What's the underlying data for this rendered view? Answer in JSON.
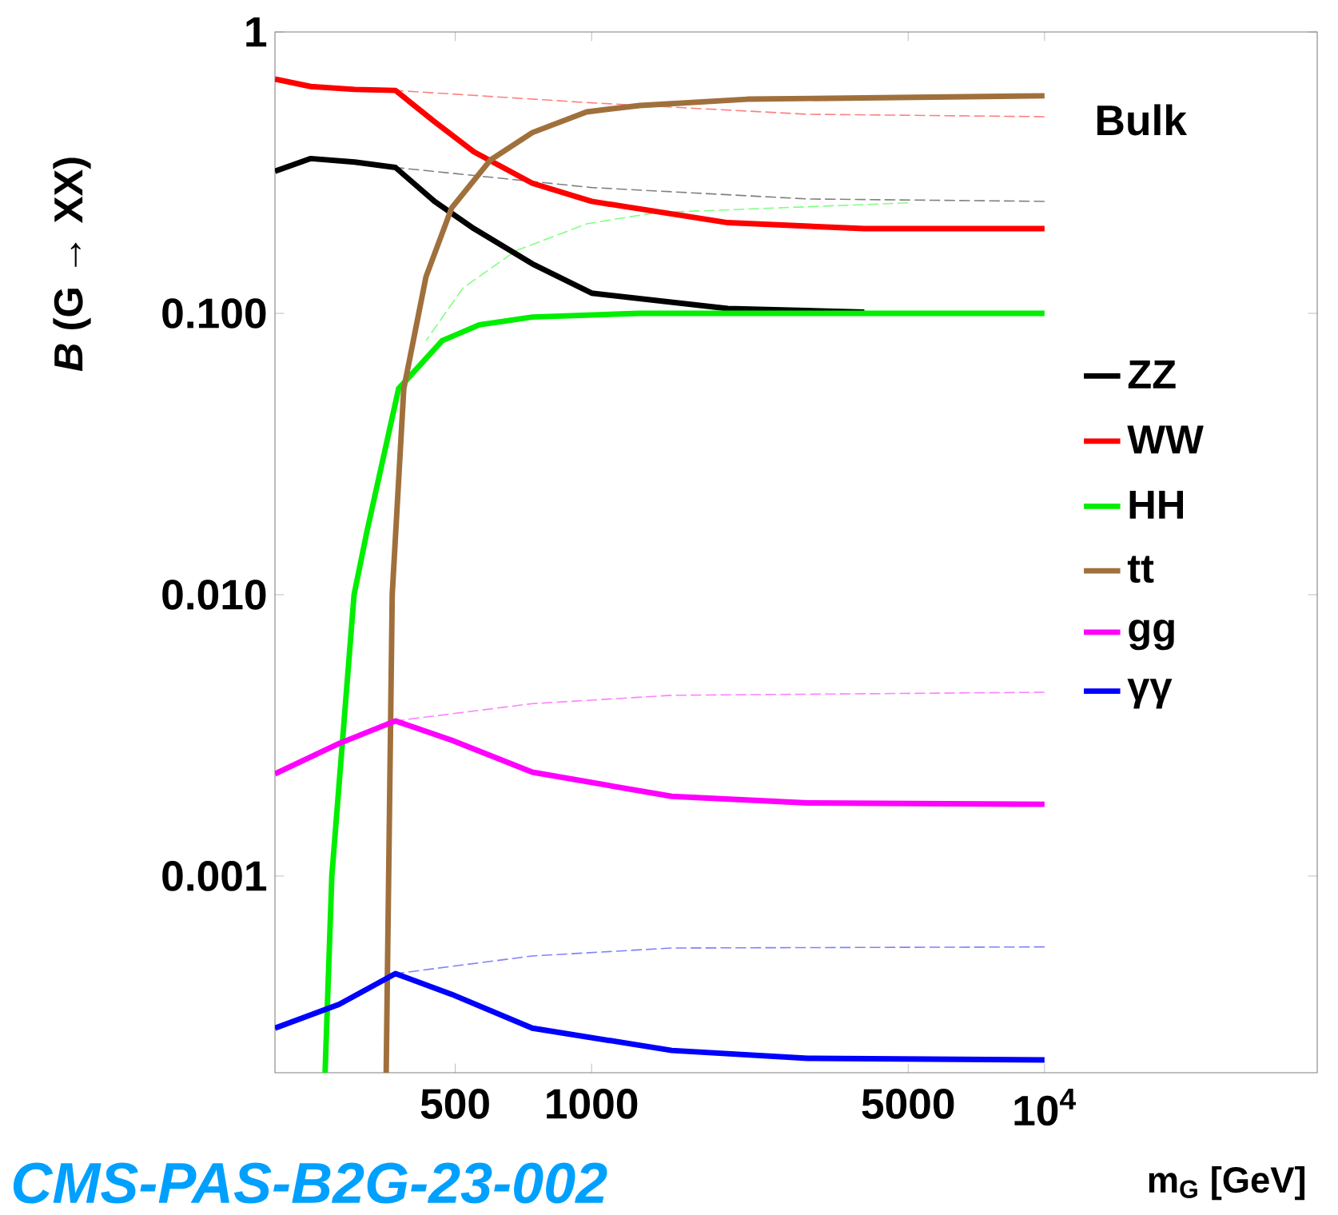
{
  "chart_data": {
    "type": "line",
    "log": "xy",
    "legend": "right",
    "marker": "none",
    "ylabel": "*B* (G → XX)",
    "xlabel": "m$_{G}$ [GeV]",
    "annotations": [
      "Bulk",
      "CMS-PAS-B2G-23-002"
    ],
    "xlim": [
      200,
      40000
    ],
    "ylim": [
      0.0002,
      1
    ],
    "xticks": [
      500,
      1000,
      5000,
      {
        "value": 10000,
        "label": "10$^{4}$"
      }
    ],
    "yticks": [
      1,
      {
        "value": 0.1,
        "label": "0.100"
      },
      {
        "value": 0.01,
        "label": "0.010"
      },
      {
        "value": 0.001,
        "label": "0.001"
      }
    ],
    "series": [
      {
        "color": "#ff8080",
        "line_style": "dashed",
        "x": [
          369,
          1000,
          3000,
          10000
        ],
        "values": [
          0.62,
          0.56,
          0.51,
          0.5
        ]
      },
      {
        "color": "#80ff80",
        "line_style": "dashed",
        "x": [
          431,
          520,
          681,
          975,
          1386,
          5000
        ],
        "values": [
          0.08,
          0.123,
          0.167,
          0.208,
          0.228,
          0.247
        ]
      },
      {
        "color": "#808080",
        "line_style": "dashed",
        "x": [
          369,
          1000,
          3000,
          10000
        ],
        "values": [
          0.33,
          0.28,
          0.255,
          0.25
        ]
      },
      {
        "color": "#ff80ff",
        "line_style": "dashed",
        "x": [
          369,
          740,
          1503,
          10000
        ],
        "values": [
          0.00356,
          0.0041,
          0.00439,
          0.0045
        ]
      },
      {
        "color": "#8080ff",
        "line_style": "dashed",
        "x": [
          369,
          740,
          1503,
          10000
        ],
        "values": [
          0.00045,
          0.00052,
          0.000555,
          0.00056
        ]
      },
      {
        "name": "ZZ",
        "color": "#000000",
        "line_style": "solid",
        "x": [
          200,
          240,
          300,
          369,
          450,
          550,
          740,
          1000,
          2000,
          4000
        ],
        "values": [
          0.32,
          0.355,
          0.345,
          0.33,
          0.25,
          0.2,
          0.15,
          0.118,
          0.104,
          0.101
        ]
      },
      {
        "name": "WW",
        "color": "#ff0000",
        "line_style": "solid",
        "x": [
          200,
          240,
          300,
          369,
          450,
          550,
          740,
          1000,
          2000,
          4000,
          10000
        ],
        "values": [
          0.68,
          0.64,
          0.625,
          0.62,
          0.48,
          0.375,
          0.29,
          0.25,
          0.21,
          0.2,
          0.2
        ]
      },
      {
        "name": "HH",
        "color": "#00ee00",
        "line_style": "solid",
        "x": [
          258,
          267,
          299,
          319,
          375,
          468,
          565,
          740,
          1277,
          10000
        ],
        "values": [
          0.0002,
          0.001,
          0.01,
          0.0167,
          0.054,
          0.08,
          0.091,
          0.097,
          0.1,
          0.1
        ]
      },
      {
        "name": "tt",
        "color": "#a0703c",
        "line_style": "solid",
        "x": [
          352,
          363,
          385,
          431,
          491,
          598,
          740,
          975,
          1277,
          2207,
          10000
        ],
        "values": [
          0.0002,
          0.01,
          0.054,
          0.135,
          0.237,
          0.351,
          0.439,
          0.52,
          0.548,
          0.577,
          0.593
        ]
      },
      {
        "name": "gg",
        "color": "#ff00ff",
        "line_style": "solid",
        "x": [
          200,
          277,
          369,
          491,
          740,
          1503,
          3000,
          10000
        ],
        "values": [
          0.00231,
          0.00296,
          0.00356,
          0.00304,
          0.00234,
          0.00192,
          0.00182,
          0.0018
        ]
      },
      {
        "name": "γγ",
        "color": "#0000ff",
        "line_style": "solid",
        "x": [
          200,
          277,
          369,
          491,
          740,
          1503,
          3000,
          10000
        ],
        "values": [
          0.000288,
          0.00035,
          0.00045,
          0.00038,
          0.000288,
          0.00024,
          0.000225,
          0.000222
        ]
      }
    ]
  }
}
